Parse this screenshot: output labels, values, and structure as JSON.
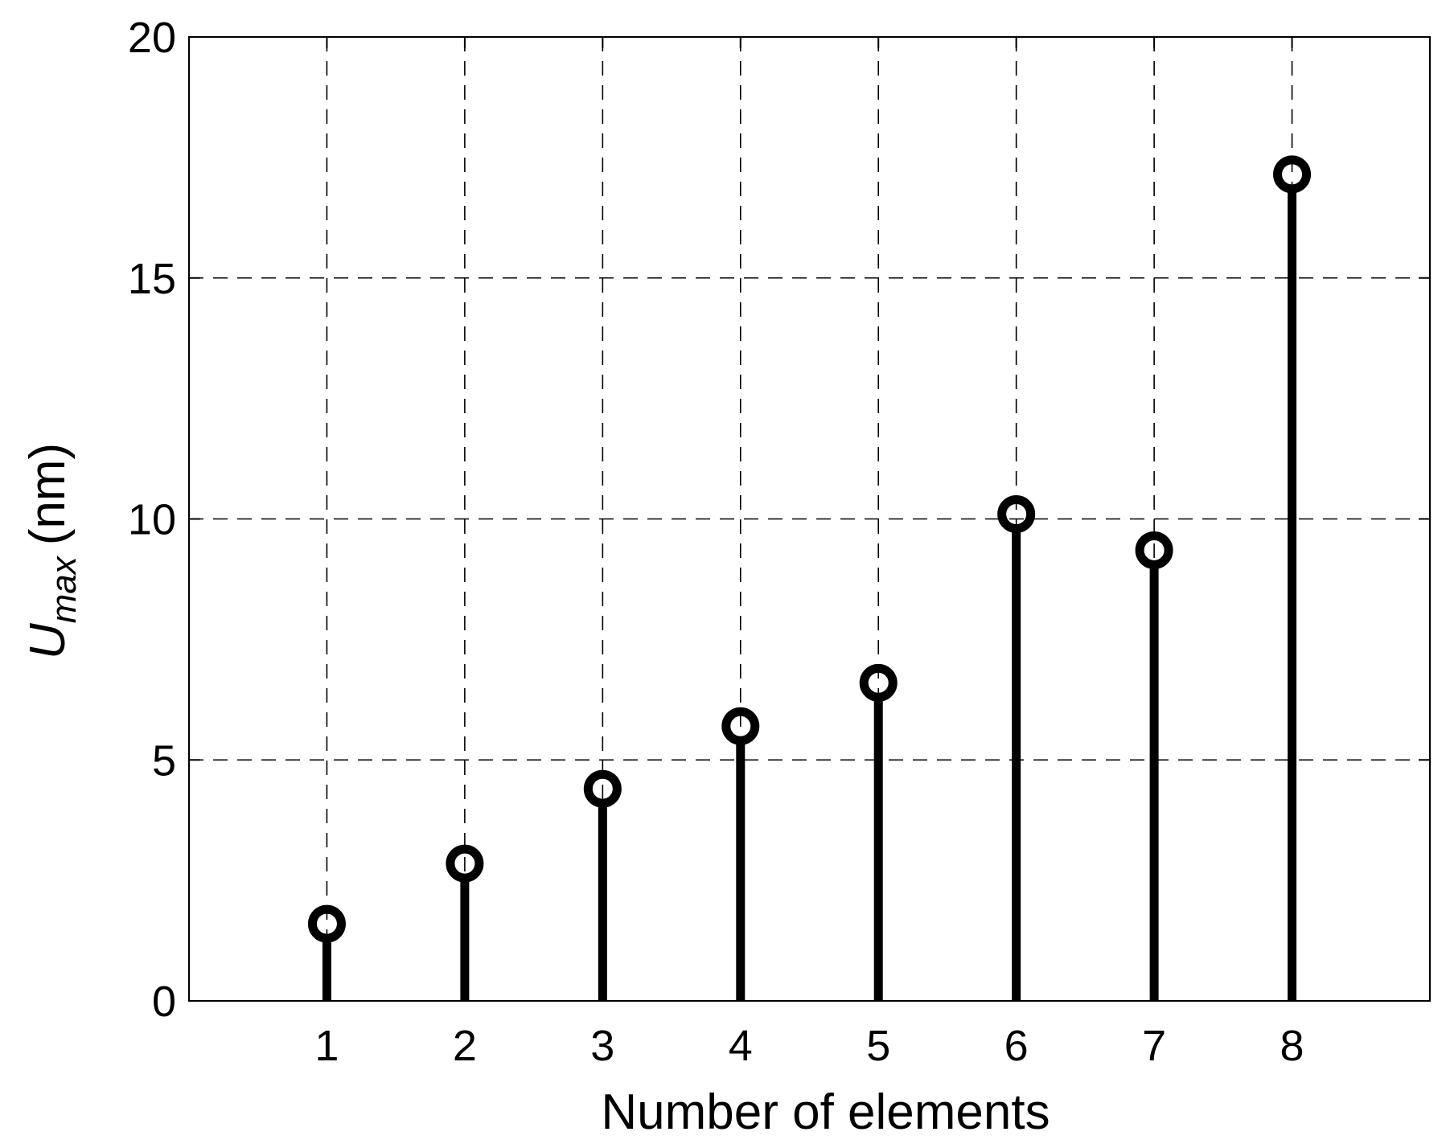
{
  "chart_data": {
    "type": "stem",
    "title": "",
    "xlabel": "Number of elements",
    "ylabel": {
      "main": "U",
      "sub": "max",
      "unit": "(nm)"
    },
    "x": [
      1,
      2,
      3,
      4,
      5,
      6,
      7,
      8
    ],
    "values": [
      1.6,
      2.85,
      4.4,
      5.7,
      6.6,
      10.1,
      9.35,
      17.15
    ],
    "xlim": [
      0,
      9
    ],
    "ylim": [
      0,
      20
    ],
    "xticks": [
      1,
      2,
      3,
      4,
      5,
      6,
      7,
      8
    ],
    "yticks": [
      0,
      5,
      10,
      15,
      20
    ],
    "grid": true,
    "marker": "open-circle",
    "color": "#000000"
  }
}
